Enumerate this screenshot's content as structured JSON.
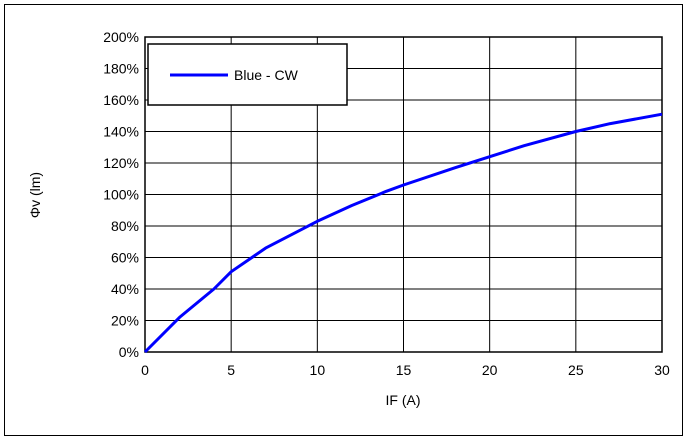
{
  "chart_data": {
    "type": "line",
    "title": "",
    "xlabel": "IF (A)",
    "ylabel": "Φv (lm)",
    "xlim": [
      0,
      30
    ],
    "ylim": [
      0,
      200
    ],
    "x_ticks": [
      "0",
      "5",
      "10",
      "15",
      "20",
      "25",
      "30"
    ],
    "y_ticks": [
      "0%",
      "20%",
      "40%",
      "60%",
      "80%",
      "100%",
      "120%",
      "140%",
      "160%",
      "180%",
      "200%"
    ],
    "grid": true,
    "legend_position": "top-left",
    "series": [
      {
        "name": "Blue - CW",
        "color": "#0000FF",
        "x": [
          0,
          2,
          4,
          5,
          7,
          10,
          12,
          14,
          15,
          18,
          20,
          22,
          25,
          27,
          30
        ],
        "y": [
          0,
          22,
          40,
          51,
          66,
          83,
          93,
          102,
          106,
          117,
          124,
          131,
          140,
          145,
          151
        ]
      }
    ]
  }
}
